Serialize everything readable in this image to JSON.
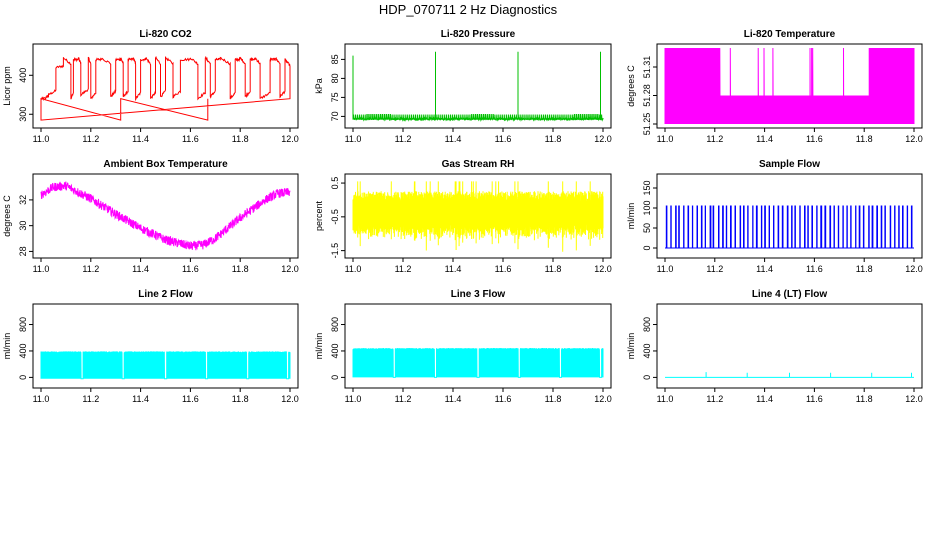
{
  "title": "HDP_070711  2 Hz Diagnostics",
  "colors": {
    "co2": "#ff0000",
    "pressure": "#00c000",
    "temperature": "#ff00ff",
    "box_temp": "#ff00ff",
    "rh": "#ffff00",
    "sample_flow": "#0000ff",
    "line_flow": "#00ffff"
  },
  "chart_data": [
    {
      "id": "co2",
      "type": "line",
      "title": "Li-820 CO2",
      "ylabel": "Licor ppm",
      "x_ticks": [
        "11.0",
        "11.2",
        "11.4",
        "11.6",
        "11.8",
        "12.0"
      ],
      "x_range": [
        11.0,
        12.0
      ],
      "y_ticks": [
        "300",
        "400"
      ],
      "y_tick_values": [
        300,
        400
      ],
      "y_range": [
        275,
        470
      ],
      "series": [
        {
          "name": "CO2",
          "color_key": "co2",
          "pattern": "step",
          "x": [
            11.0,
            11.02,
            11.03,
            11.06,
            11.09,
            11.12,
            11.13,
            11.15,
            11.16,
            11.19,
            11.2,
            11.22,
            11.24,
            11.28,
            11.3,
            11.32,
            11.33,
            11.35,
            11.37,
            11.38,
            11.4,
            11.42,
            11.44,
            11.46,
            11.48,
            11.5,
            11.5,
            11.53,
            11.56,
            11.6,
            11.63,
            11.66,
            11.68,
            11.7,
            11.72,
            11.76,
            11.78,
            11.8,
            11.82,
            11.84,
            11.86,
            11.88,
            11.92,
            11.94,
            11.96,
            11.98,
            12.0
          ],
          "y": [
            340,
            345,
            350,
            420,
            445,
            340,
            440,
            445,
            350,
            445,
            340,
            440,
            445,
            345,
            440,
            445,
            345,
            440,
            445,
            340,
            440,
            445,
            340,
            445,
            345,
            440,
            445,
            345,
            440,
            445,
            340,
            445,
            345,
            440,
            445,
            340,
            440,
            445,
            345,
            440,
            445,
            340,
            440,
            445,
            345,
            440,
            340
          ]
        }
      ]
    },
    {
      "id": "pressure",
      "type": "line",
      "title": "Li-820 Pressure",
      "ylabel": "kPa",
      "x_ticks": [
        "11.0",
        "11.2",
        "11.4",
        "11.6",
        "11.8",
        "12.0"
      ],
      "x_range": [
        11.0,
        12.0
      ],
      "y_ticks": [
        "70",
        "75",
        "80",
        "85"
      ],
      "y_tick_values": [
        70,
        75,
        80,
        85
      ],
      "y_range": [
        68,
        88
      ],
      "series": [
        {
          "name": "Pressure",
          "color_key": "pressure",
          "pattern": "baseline-spikes",
          "baseline": 69.3,
          "noise": 0.6,
          "spike_x": [
            11.0,
            11.33,
            11.66,
            11.99
          ],
          "spike_y": [
            86,
            87,
            87,
            87
          ]
        }
      ]
    },
    {
      "id": "temperature",
      "type": "line",
      "title": "Li-820 Temperature",
      "ylabel": "degrees C",
      "x_ticks": [
        "11.0",
        "11.2",
        "11.4",
        "11.6",
        "11.8",
        "12.0"
      ],
      "x_range": [
        11.0,
        12.0
      ],
      "y_ticks": [
        "51.25",
        "51.28",
        "51.31"
      ],
      "y_tick_values": [
        51.25,
        51.28,
        51.31
      ],
      "y_range": [
        51.25,
        51.33
      ],
      "series": [
        {
          "name": "Temperature",
          "color_key": "temperature",
          "pattern": "dense-band",
          "band_low": 51.25,
          "band_high": 51.28,
          "spike_high": 51.33,
          "dense_spike_ranges": [
            [
              11.0,
              11.22
            ],
            [
              11.82,
              12.0
            ]
          ]
        }
      ]
    },
    {
      "id": "box_temp",
      "type": "line",
      "title": "Ambient Box Temperature",
      "ylabel": "degrees C",
      "x_ticks": [
        "11.0",
        "11.2",
        "11.4",
        "11.6",
        "11.8",
        "12.0"
      ],
      "x_range": [
        11.0,
        12.0
      ],
      "y_ticks": [
        "28",
        "30",
        "32"
      ],
      "y_tick_values": [
        28,
        30,
        32
      ],
      "y_range": [
        27.8,
        33.7
      ],
      "series": [
        {
          "name": "Box Temperature",
          "color_key": "box_temp",
          "pattern": "noisy-curve",
          "noise": 0.35,
          "x": [
            11.0,
            11.05,
            11.1,
            11.2,
            11.3,
            11.4,
            11.5,
            11.6,
            11.65,
            11.7,
            11.8,
            11.9,
            11.95,
            12.0
          ],
          "y": [
            32.4,
            33.0,
            33.1,
            32.1,
            30.9,
            29.8,
            28.9,
            28.4,
            28.5,
            29.0,
            30.6,
            32.0,
            32.5,
            32.6
          ]
        }
      ]
    },
    {
      "id": "rh",
      "type": "line",
      "title": "Gas Stream RH",
      "ylabel": "percent",
      "x_ticks": [
        "11.0",
        "11.2",
        "11.4",
        "11.6",
        "11.8",
        "12.0"
      ],
      "x_range": [
        11.0,
        12.0
      ],
      "y_ticks": [
        "-1.5",
        "-0.5",
        "0.5"
      ],
      "y_tick_values": [
        -1.5,
        -0.5,
        0.5
      ],
      "y_range": [
        -1.6,
        0.65
      ],
      "series": [
        {
          "name": "RH",
          "color_key": "rh",
          "pattern": "noise-band",
          "center": -0.4,
          "half_width": 0.55,
          "outlier": 0.95
        }
      ]
    },
    {
      "id": "sample_flow",
      "type": "line",
      "title": "Sample Flow",
      "ylabel": "ml/min",
      "x_ticks": [
        "11.0",
        "11.2",
        "11.4",
        "11.6",
        "11.8",
        "12.0"
      ],
      "x_range": [
        11.0,
        12.0
      ],
      "y_ticks": [
        "0",
        "50",
        "100",
        "150"
      ],
      "y_tick_values": [
        0,
        50,
        100,
        150
      ],
      "y_range": [
        -15,
        175
      ],
      "series": [
        {
          "name": "Sample Flow",
          "color_key": "sample_flow",
          "pattern": "pulses",
          "low": 0,
          "high": 105,
          "pulse_count": 58
        }
      ]
    },
    {
      "id": "line2",
      "type": "line",
      "title": "Line 2 Flow",
      "ylabel": "ml/min",
      "x_ticks": [
        "11.0",
        "11.2",
        "11.4",
        "11.6",
        "11.8",
        "12.0"
      ],
      "x_range": [
        11.0,
        12.0
      ],
      "y_ticks": [
        "0",
        "400",
        "800"
      ],
      "y_tick_values": [
        0,
        400,
        800
      ],
      "y_range": [
        -100,
        1050
      ],
      "series": [
        {
          "name": "Line 2",
          "color_key": "line_flow",
          "pattern": "blocks",
          "low": -20,
          "high": 390,
          "gaps": [
            11.165,
            11.33,
            11.5,
            11.665,
            11.83,
            11.99
          ]
        }
      ]
    },
    {
      "id": "line3",
      "type": "line",
      "title": "Line 3 Flow",
      "ylabel": "ml/min",
      "x_ticks": [
        "11.0",
        "11.2",
        "11.4",
        "11.6",
        "11.8",
        "12.0"
      ],
      "x_range": [
        11.0,
        12.0
      ],
      "y_ticks": [
        "0",
        "400",
        "800"
      ],
      "y_tick_values": [
        0,
        400,
        800
      ],
      "y_range": [
        -100,
        1050
      ],
      "series": [
        {
          "name": "Line 3",
          "color_key": "line_flow",
          "pattern": "blocks",
          "low": 0,
          "high": 440,
          "gaps": [
            11.165,
            11.33,
            11.5,
            11.665,
            11.83,
            11.99
          ]
        }
      ]
    },
    {
      "id": "line4",
      "type": "line",
      "title": "Line 4 (LT) Flow",
      "ylabel": "ml/min",
      "x_ticks": [
        "11.0",
        "11.2",
        "11.4",
        "11.6",
        "11.8",
        "12.0"
      ],
      "x_range": [
        11.0,
        12.0
      ],
      "y_ticks": [
        "0",
        "400",
        "800"
      ],
      "y_tick_values": [
        0,
        400,
        800
      ],
      "y_range": [
        -100,
        1050
      ],
      "series": [
        {
          "name": "Line 4",
          "color_key": "line_flow",
          "pattern": "baseline-spikes",
          "baseline": 0,
          "noise": 0,
          "spike_x": [
            11.165,
            11.33,
            11.5,
            11.665,
            11.83,
            11.99
          ],
          "spike_y": [
            80,
            70,
            70,
            70,
            70,
            70
          ]
        }
      ]
    }
  ]
}
